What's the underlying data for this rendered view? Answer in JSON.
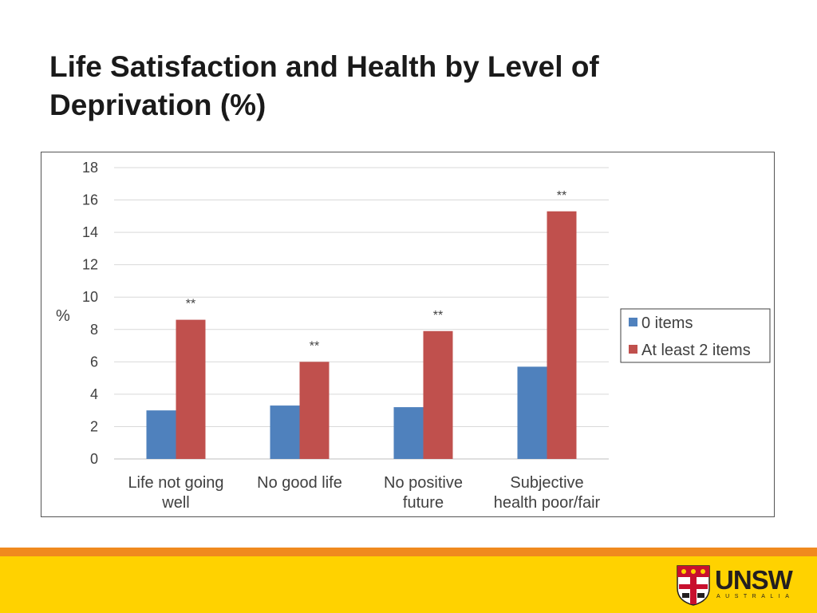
{
  "slide": {
    "title_line1": "Life Satisfaction and Health by Level of",
    "title_line2": "Deprivation (%)"
  },
  "chart_data": {
    "type": "bar",
    "title": "",
    "ylabel": "%",
    "xlabel": "",
    "ylim": [
      0,
      18
    ],
    "yticks": [
      0,
      2,
      4,
      6,
      8,
      10,
      12,
      14,
      16,
      18
    ],
    "categories": [
      [
        "Life not going",
        "well"
      ],
      [
        "No good life"
      ],
      [
        "No positive",
        "future"
      ],
      [
        "Subjective",
        "health poor/fair"
      ]
    ],
    "series": [
      {
        "name": "0 items",
        "color": "#4f81bd",
        "values": [
          3.0,
          3.3,
          3.2,
          5.7
        ]
      },
      {
        "name": "At least 2 items",
        "color": "#c0504d",
        "values": [
          8.6,
          6.0,
          7.9,
          15.3
        ]
      }
    ],
    "significance": [
      "**",
      "**",
      "**",
      "**"
    ],
    "legend_position": "right",
    "grid": true
  },
  "logo": {
    "word": "UNSW",
    "sub": "AUSTRALIA"
  },
  "colors": {
    "band": "#f08a1e",
    "footer": "#ffd200"
  }
}
